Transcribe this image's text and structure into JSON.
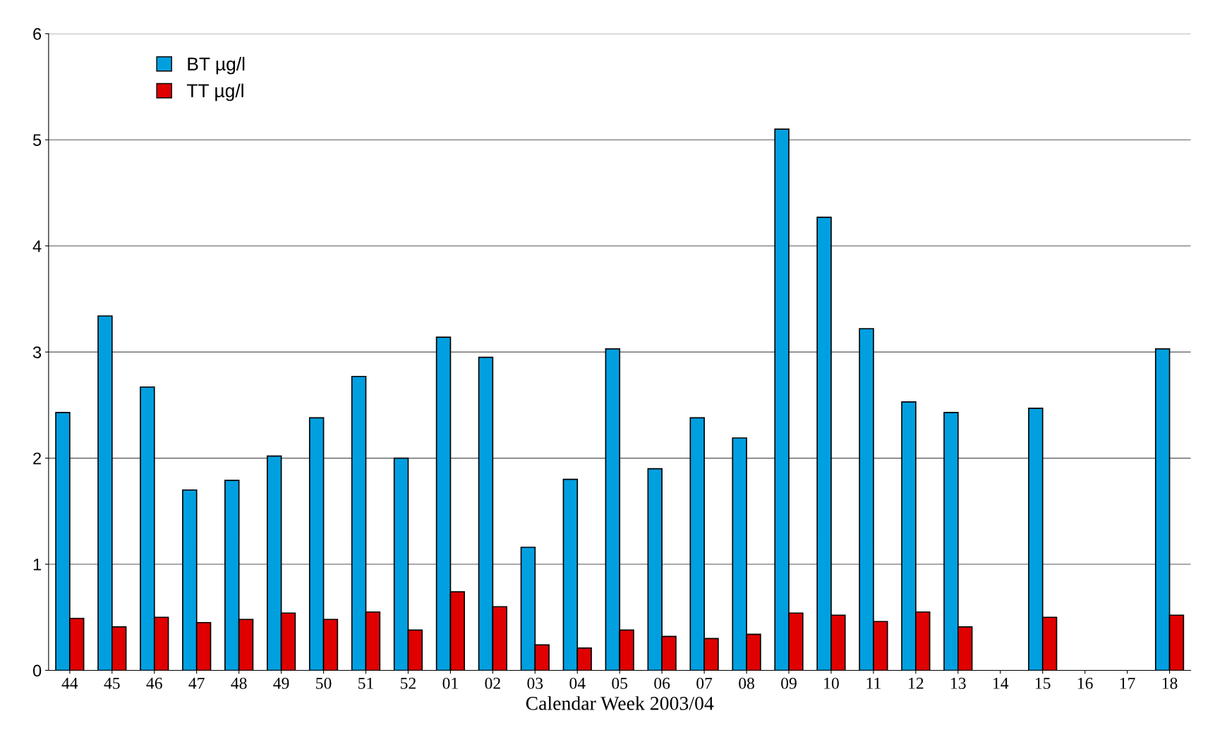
{
  "chart_data": {
    "type": "bar",
    "xlabel": "Calendar Week 2003/04",
    "categories": [
      "44",
      "45",
      "46",
      "47",
      "48",
      "49",
      "50",
      "51",
      "52",
      "01",
      "02",
      "03",
      "04",
      "05",
      "06",
      "07",
      "08",
      "09",
      "10",
      "11",
      "12",
      "13",
      "14",
      "15",
      "16",
      "17",
      "18"
    ],
    "series": [
      {
        "name": "BT µg/l",
        "color": "#00a0e0",
        "values": [
          2.43,
          3.34,
          2.67,
          1.7,
          1.79,
          2.02,
          2.38,
          2.77,
          2.0,
          3.14,
          2.95,
          1.16,
          1.8,
          3.03,
          1.9,
          2.38,
          2.19,
          5.1,
          4.27,
          3.22,
          2.53,
          2.43,
          null,
          2.47,
          null,
          null,
          3.03
        ]
      },
      {
        "name": "TT µg/l",
        "color": "#e00000",
        "values": [
          0.49,
          0.41,
          0.5,
          0.45,
          0.48,
          0.54,
          0.48,
          0.55,
          0.38,
          0.74,
          0.6,
          0.24,
          0.21,
          0.38,
          0.32,
          0.3,
          0.34,
          0.54,
          0.52,
          0.46,
          0.55,
          0.41,
          null,
          0.5,
          null,
          null,
          0.52
        ]
      }
    ],
    "ylim": [
      0,
      6
    ],
    "yticks": [
      0,
      1,
      2,
      3,
      4,
      5,
      6
    ],
    "grid": "y",
    "legend": "top left"
  }
}
